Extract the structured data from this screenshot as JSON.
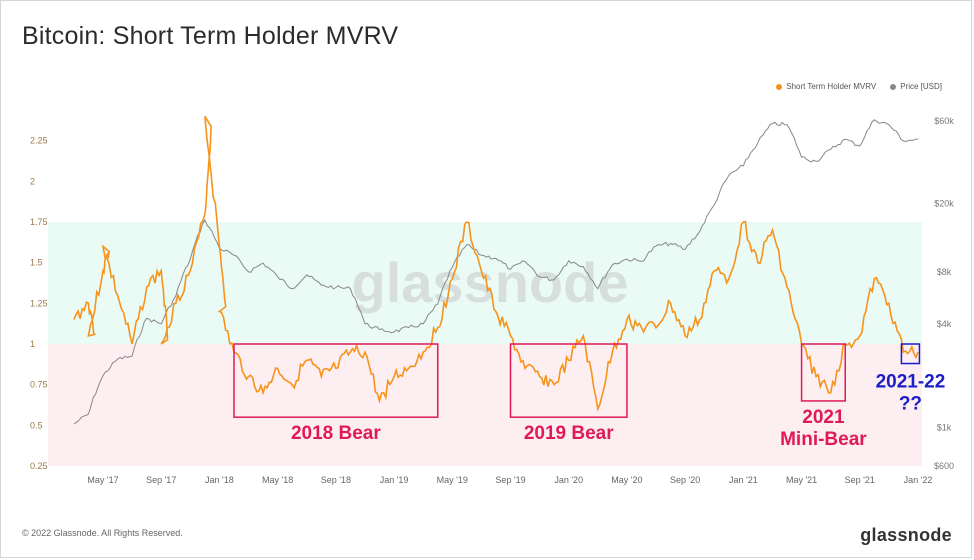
{
  "title": "Bitcoin: Short Term Holder MVRV",
  "legend": [
    {
      "name": "Short Term Holder MVRV",
      "color": "#f7931a"
    },
    {
      "name": "Price [USD]",
      "color": "#888888"
    }
  ],
  "watermark": "glassnode",
  "footer": {
    "copyright": "© 2022 Glassnode. All Rights Reserved.",
    "logo": "glassnode"
  },
  "chart_data": {
    "type": "line",
    "x_ticks": [
      "May '17",
      "Sep '17",
      "Jan '18",
      "May '18",
      "Sep '18",
      "Jan '19",
      "May '19",
      "Sep '19",
      "Jan '20",
      "May '20",
      "Sep '20",
      "Jan '21",
      "May '21",
      "Sep '21",
      "Jan '22"
    ],
    "y_left": {
      "ticks": [
        "0.25",
        "0.5",
        "0.75",
        "1",
        "1.25",
        "1.5",
        "1.75",
        "2",
        "2.25"
      ],
      "range": [
        0.25,
        2.5
      ]
    },
    "y_right": {
      "ticks": [
        "$600",
        "$1k",
        "$4k",
        "$8k",
        "$20k",
        "$60k"
      ],
      "scale": "log"
    },
    "bands": [
      {
        "from": 1.0,
        "to": 1.75,
        "color": "#eafaf4"
      },
      {
        "from": 0.25,
        "to": 1.0,
        "color": "#fdeef2"
      }
    ],
    "series": [
      {
        "name": "Short Term Holder MVRV",
        "color": "#f7931a",
        "points": [
          [
            "Mar '17",
            1.15
          ],
          [
            "Apr '17",
            1.25
          ],
          [
            "Apr '17",
            1.05
          ],
          [
            "May '17",
            1.45
          ],
          [
            "May '17",
            1.6
          ],
          [
            "Jun '17",
            1.3
          ],
          [
            "Jul '17",
            1.0
          ],
          [
            "Aug '17",
            1.35
          ],
          [
            "Sep '17",
            1.45
          ],
          [
            "Sep '17",
            1.0
          ],
          [
            "Oct '17",
            1.25
          ],
          [
            "Nov '17",
            1.45
          ],
          [
            "Dec '17",
            1.8
          ],
          [
            "Dec '17",
            2.4
          ],
          [
            "Jan '18",
            1.6
          ],
          [
            "Jan '18",
            1.2
          ],
          [
            "Feb '18",
            0.95
          ],
          [
            "Mar '18",
            0.8
          ],
          [
            "Apr '18",
            0.7
          ],
          [
            "May '18",
            0.85
          ],
          [
            "Jun '18",
            0.75
          ],
          [
            "Jul '18",
            0.9
          ],
          [
            "Aug '18",
            0.8
          ],
          [
            "Sep '18",
            0.85
          ],
          [
            "Oct '18",
            0.95
          ],
          [
            "Nov '18",
            0.95
          ],
          [
            "Dec '18",
            0.65
          ],
          [
            "Jan '19",
            0.8
          ],
          [
            "Feb '19",
            0.85
          ],
          [
            "Mar '19",
            0.95
          ],
          [
            "Apr '19",
            1.1
          ],
          [
            "May '19",
            1.4
          ],
          [
            "Jun '19",
            1.75
          ],
          [
            "Jul '19",
            1.45
          ],
          [
            "Aug '19",
            1.2
          ],
          [
            "Sep '19",
            1.05
          ],
          [
            "Oct '19",
            0.85
          ],
          [
            "Nov '19",
            0.8
          ],
          [
            "Dec '19",
            0.75
          ],
          [
            "Jan '20",
            0.9
          ],
          [
            "Feb '20",
            1.05
          ],
          [
            "Mar '20",
            0.6
          ],
          [
            "Apr '20",
            0.95
          ],
          [
            "May '20",
            1.15
          ],
          [
            "Jun '20",
            1.1
          ],
          [
            "Jul '20",
            1.1
          ],
          [
            "Aug '20",
            1.25
          ],
          [
            "Sep '20",
            1.05
          ],
          [
            "Oct '20",
            1.15
          ],
          [
            "Nov '20",
            1.45
          ],
          [
            "Dec '20",
            1.4
          ],
          [
            "Jan '21",
            1.75
          ],
          [
            "Feb '21",
            1.5
          ],
          [
            "Mar '21",
            1.7
          ],
          [
            "Apr '21",
            1.35
          ],
          [
            "May '21",
            1.0
          ],
          [
            "Jun '21",
            0.8
          ],
          [
            "Jul '21",
            0.7
          ],
          [
            "Aug '21",
            1.0
          ],
          [
            "Sep '21",
            1.05
          ],
          [
            "Oct '21",
            1.4
          ],
          [
            "Nov '21",
            1.25
          ],
          [
            "Dec '21",
            0.95
          ],
          [
            "Jan '22",
            0.95
          ]
        ]
      },
      {
        "name": "Price [USD]",
        "color": "#888888",
        "points": [
          [
            "Mar '17",
            1050
          ],
          [
            "Apr '17",
            1200
          ],
          [
            "May '17",
            2000
          ],
          [
            "Jun '17",
            2500
          ],
          [
            "Jul '17",
            2600
          ],
          [
            "Aug '17",
            4300
          ],
          [
            "Sep '17",
            4000
          ],
          [
            "Oct '17",
            5800
          ],
          [
            "Nov '17",
            9500
          ],
          [
            "Dec '17",
            16000
          ],
          [
            "Jan '18",
            11000
          ],
          [
            "Feb '18",
            10000
          ],
          [
            "Mar '18",
            8000
          ],
          [
            "Apr '18",
            9000
          ],
          [
            "May '18",
            7500
          ],
          [
            "Jun '18",
            6400
          ],
          [
            "Jul '18",
            7700
          ],
          [
            "Aug '18",
            6700
          ],
          [
            "Sep '18",
            6500
          ],
          [
            "Oct '18",
            6400
          ],
          [
            "Nov '18",
            4000
          ],
          [
            "Dec '18",
            3700
          ],
          [
            "Jan '19",
            3600
          ],
          [
            "Feb '19",
            3800
          ],
          [
            "Mar '19",
            4000
          ],
          [
            "Apr '19",
            5200
          ],
          [
            "May '19",
            8500
          ],
          [
            "Jun '19",
            11500
          ],
          [
            "Jul '19",
            10000
          ],
          [
            "Aug '19",
            9600
          ],
          [
            "Sep '19",
            8300
          ],
          [
            "Oct '19",
            9200
          ],
          [
            "Nov '19",
            7500
          ],
          [
            "Dec '19",
            7200
          ],
          [
            "Jan '20",
            9300
          ],
          [
            "Feb '20",
            8600
          ],
          [
            "Mar '20",
            6400
          ],
          [
            "Apr '20",
            8800
          ],
          [
            "May '20",
            9500
          ],
          [
            "Jun '20",
            9200
          ],
          [
            "Jul '20",
            11300
          ],
          [
            "Aug '20",
            11700
          ],
          [
            "Sep '20",
            10800
          ],
          [
            "Oct '20",
            13700
          ],
          [
            "Nov '20",
            19600
          ],
          [
            "Dec '20",
            29000
          ],
          [
            "Jan '21",
            33000
          ],
          [
            "Feb '21",
            45000
          ],
          [
            "Mar '21",
            58000
          ],
          [
            "Apr '21",
            57000
          ],
          [
            "May '21",
            37000
          ],
          [
            "Jun '21",
            35000
          ],
          [
            "Jul '21",
            41000
          ],
          [
            "Aug '21",
            47000
          ],
          [
            "Sep '21",
            43000
          ],
          [
            "Oct '21",
            61000
          ],
          [
            "Nov '21",
            57000
          ],
          [
            "Dec '21",
            46000
          ],
          [
            "Jan '22",
            47000
          ]
        ]
      }
    ],
    "annotations": [
      {
        "label": "2018 Bear",
        "color": "#e0195a",
        "x_range": [
          "Feb '18",
          "Apr '19"
        ],
        "y_range": [
          0.55,
          1.0
        ]
      },
      {
        "label": "2019 Bear",
        "color": "#e0195a",
        "x_range": [
          "Sep '19",
          "May '20"
        ],
        "y_range": [
          0.55,
          1.0
        ]
      },
      {
        "label": "2021",
        "label2": "Mini-Bear",
        "color": "#e0195a",
        "x_range": [
          "May '21",
          "Aug '21"
        ],
        "y_range": [
          0.65,
          1.0
        ]
      },
      {
        "label": "2021-22",
        "label2": "??",
        "color": "#1d1dc8",
        "x_range": [
          "Dec '21",
          "Jan '22"
        ],
        "y_range": [
          0.88,
          1.0
        ]
      }
    ]
  }
}
